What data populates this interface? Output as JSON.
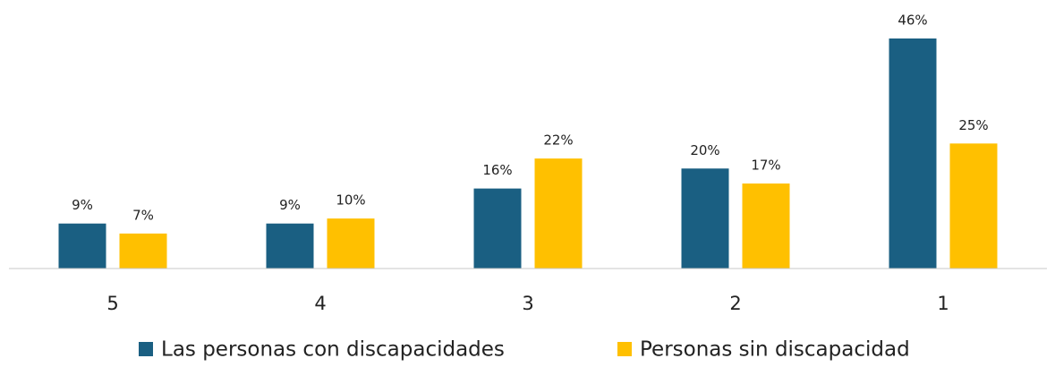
{
  "chart_data": {
    "type": "bar",
    "categories": [
      "5",
      "4",
      "3",
      "2",
      "1"
    ],
    "series": [
      {
        "name": "Las personas con discapacidades",
        "color": "#1a5f82",
        "values": [
          9,
          9,
          16,
          20,
          46
        ],
        "value_labels": [
          "9%",
          "9%",
          "16%",
          "20%",
          "46%"
        ]
      },
      {
        "name": "Personas sin discapacidad",
        "color": "#ffc000",
        "values": [
          7,
          10,
          22,
          17,
          25
        ],
        "value_labels": [
          "7%",
          "10%",
          "22%",
          "17%",
          "25%"
        ]
      }
    ],
    "legend": "bottom"
  }
}
